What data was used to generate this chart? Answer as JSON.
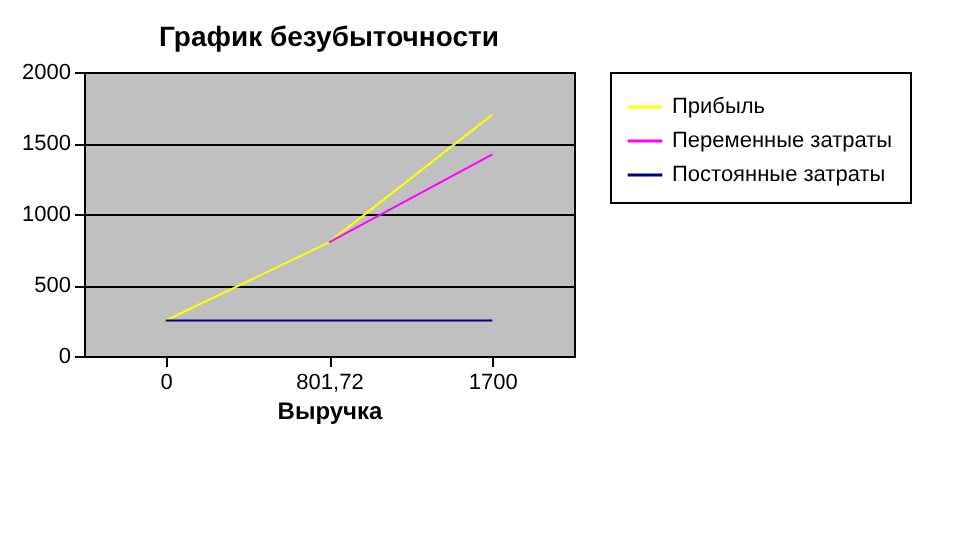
{
  "chart_data": {
    "type": "line",
    "title": "График безубыточности",
    "xlabel": "Выручка",
    "categories": [
      "0",
      "801,72",
      "1700"
    ],
    "series": [
      {
        "name": "Прибыль",
        "color": "#ffff00",
        "values": [
          250,
          800,
          1700
        ]
      },
      {
        "name": "Переменные затраты",
        "color": "#ff00ff",
        "values": [
          null,
          800,
          1420
        ]
      },
      {
        "name": "Постоянные затраты",
        "color": "#000080",
        "values": [
          250,
          250,
          250
        ]
      }
    ],
    "ylim": [
      0,
      2000
    ],
    "yticks": [
      0,
      500,
      1000,
      1500,
      2000
    ],
    "grid": "y",
    "legend": "right",
    "marker": "none",
    "line_style": "solid"
  }
}
